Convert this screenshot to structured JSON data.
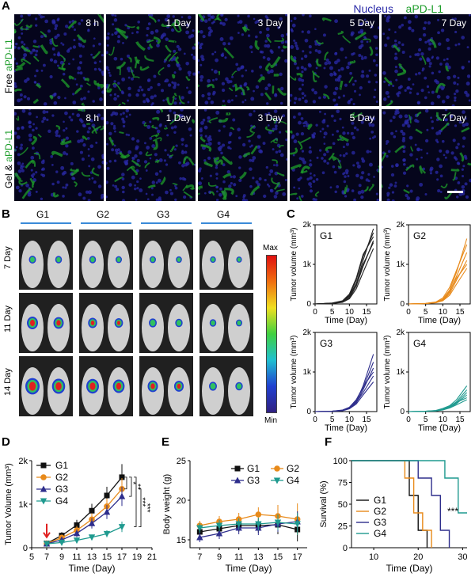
{
  "panelA": {
    "letter": "A",
    "legend_nucleus": "Nucleus",
    "legend_apdl1": "aPD-L1",
    "row1_label_prefix": "Free ",
    "row1_label_colored": "aPD-L1",
    "row2_label_prefix": "Gel & ",
    "row2_label_colored": "aPD-L1",
    "timepoints": [
      "8 h",
      "1 Day",
      "3 Day",
      "5 Day",
      "7 Day"
    ],
    "colors": {
      "nucleus": "#2a2aa8",
      "apdl1": "#1e9d2a"
    }
  },
  "panelB": {
    "letter": "B",
    "groups": [
      "G1",
      "G2",
      "G3",
      "G4"
    ],
    "days": [
      "7 Day",
      "11 Day",
      "14 Day"
    ],
    "colorbar_max": "Max",
    "colorbar_min": "Min"
  },
  "panelC": {
    "letter": "C",
    "ylabel": "Tumor volume (mm³)",
    "xlabel": "Time (Day)",
    "yticks": [
      "0",
      "1k",
      "2k"
    ],
    "xticks": [
      "0",
      "5",
      "10",
      "15"
    ],
    "charts": [
      {
        "group": "G1",
        "color": "#222222"
      },
      {
        "group": "G2",
        "color": "#e88a1a"
      },
      {
        "group": "G3",
        "color": "#2e2e8c"
      },
      {
        "group": "G4",
        "color": "#1f9a8f"
      }
    ]
  },
  "panelD": {
    "letter": "D",
    "sig": [
      "*",
      "**",
      "***",
      "***"
    ]
  },
  "panelE": {
    "letter": "E"
  },
  "panelF": {
    "letter": "F",
    "sig": "***"
  },
  "chart_data": [
    {
      "type": "line",
      "title": "G1",
      "xlabel": "Time (Day)",
      "ylabel": "Tumor volume (mm³)",
      "xlim": [
        0,
        18
      ],
      "ylim": [
        0,
        2000
      ],
      "x": [
        0,
        5,
        8,
        10,
        12,
        14,
        17
      ],
      "series": [
        {
          "values": [
            0,
            20,
            60,
            180,
            500,
            1100,
            1900
          ]
        },
        {
          "values": [
            0,
            20,
            70,
            220,
            600,
            1200,
            1800
          ]
        },
        {
          "values": [
            0,
            15,
            50,
            150,
            450,
            950,
            1600
          ]
        },
        {
          "values": [
            0,
            25,
            80,
            250,
            650,
            1250,
            1700
          ]
        },
        {
          "values": [
            0,
            10,
            40,
            130,
            380,
            800,
            1400
          ]
        },
        {
          "values": [
            0,
            20,
            65,
            200,
            520,
            1000,
            1550
          ]
        }
      ]
    },
    {
      "type": "line",
      "title": "G2",
      "xlabel": "Time (Day)",
      "ylabel": "Tumor volume (mm³)",
      "xlim": [
        0,
        18
      ],
      "ylim": [
        0,
        2000
      ],
      "x": [
        0,
        5,
        8,
        10,
        12,
        14,
        17
      ],
      "series": [
        {
          "values": [
            0,
            10,
            40,
            120,
            350,
            800,
            1650
          ]
        },
        {
          "values": [
            0,
            10,
            35,
            100,
            300,
            700,
            1300
          ]
        },
        {
          "values": [
            0,
            15,
            50,
            150,
            420,
            850,
            1500
          ]
        },
        {
          "values": [
            0,
            10,
            30,
            90,
            260,
            600,
            1100
          ]
        },
        {
          "values": [
            0,
            12,
            45,
            110,
            320,
            650,
            1000
          ]
        },
        {
          "values": [
            0,
            8,
            30,
            80,
            220,
            500,
            900
          ]
        }
      ]
    },
    {
      "type": "line",
      "title": "G3",
      "xlabel": "Time (Day)",
      "ylabel": "Tumor volume (mm³)",
      "xlim": [
        0,
        18
      ],
      "ylim": [
        0,
        2000
      ],
      "x": [
        0,
        5,
        8,
        10,
        12,
        14,
        17
      ],
      "series": [
        {
          "values": [
            0,
            10,
            30,
            90,
            250,
            650,
            1450
          ]
        },
        {
          "values": [
            0,
            10,
            35,
            100,
            280,
            600,
            1250
          ]
        },
        {
          "values": [
            0,
            8,
            25,
            80,
            220,
            550,
            1100
          ]
        },
        {
          "values": [
            0,
            12,
            40,
            110,
            300,
            620,
            1000
          ]
        },
        {
          "values": [
            0,
            10,
            30,
            85,
            230,
            480,
            900
          ]
        },
        {
          "values": [
            0,
            6,
            20,
            70,
            190,
            420,
            750
          ]
        }
      ]
    },
    {
      "type": "line",
      "title": "G4",
      "xlabel": "Time (Day)",
      "ylabel": "Tumor volume (mm³)",
      "xlim": [
        0,
        18
      ],
      "ylim": [
        0,
        2000
      ],
      "x": [
        0,
        5,
        8,
        10,
        12,
        14,
        17
      ],
      "series": [
        {
          "values": [
            0,
            10,
            30,
            80,
            150,
            300,
            650
          ]
        },
        {
          "values": [
            0,
            8,
            25,
            60,
            130,
            250,
            550
          ]
        },
        {
          "values": [
            0,
            10,
            20,
            55,
            110,
            220,
            480
          ]
        },
        {
          "values": [
            0,
            6,
            18,
            45,
            100,
            200,
            420
          ]
        },
        {
          "values": [
            0,
            8,
            22,
            50,
            120,
            230,
            350
          ]
        },
        {
          "values": [
            0,
            5,
            15,
            40,
            90,
            170,
            300
          ]
        }
      ]
    },
    {
      "type": "line",
      "xlabel": "Time (Day)",
      "ylabel": "Tumor Volume (mm³)",
      "xlim": [
        5,
        21
      ],
      "ylim": [
        0,
        2000
      ],
      "xticks": [
        5,
        7,
        9,
        11,
        13,
        15,
        17,
        19,
        21
      ],
      "yticks": [
        "0",
        "1k",
        "2k"
      ],
      "legend": "top-left",
      "series": [
        {
          "name": "G1",
          "color": "#111111",
          "marker": "square",
          "x": [
            7,
            9,
            11,
            13,
            15,
            17
          ],
          "values": [
            100,
            280,
            520,
            850,
            1200,
            1620
          ],
          "err": [
            40,
            80,
            120,
            160,
            200,
            300
          ]
        },
        {
          "name": "G2",
          "color": "#e88a1a",
          "marker": "circle",
          "x": [
            7,
            9,
            11,
            13,
            15,
            17
          ],
          "values": [
            100,
            230,
            400,
            650,
            950,
            1350
          ],
          "err": [
            40,
            70,
            100,
            140,
            180,
            250
          ]
        },
        {
          "name": "G3",
          "color": "#2e2e8c",
          "marker": "triangle",
          "x": [
            7,
            9,
            11,
            13,
            15,
            17
          ],
          "values": [
            90,
            180,
            330,
            560,
            820,
            1180
          ],
          "err": [
            30,
            60,
            90,
            120,
            160,
            220
          ]
        },
        {
          "name": "G4",
          "color": "#1f9a8f",
          "marker": "triangle-down",
          "x": [
            7,
            9,
            11,
            13,
            15,
            17
          ],
          "values": [
            90,
            120,
            170,
            240,
            320,
            480
          ],
          "err": [
            30,
            40,
            50,
            60,
            80,
            120
          ]
        }
      ]
    },
    {
      "type": "line",
      "xlabel": "Time (Day)",
      "ylabel": "Body weight (g)",
      "xlim": [
        6,
        18
      ],
      "ylim": [
        14,
        25
      ],
      "xticks": [
        7,
        9,
        11,
        13,
        15,
        17
      ],
      "yticks": [
        15,
        20,
        25
      ],
      "legend": "top",
      "series": [
        {
          "name": "G1",
          "color": "#111111",
          "marker": "square",
          "x": [
            7,
            9,
            11,
            13,
            15,
            17
          ],
          "values": [
            16.0,
            16.4,
            16.8,
            16.8,
            16.9,
            16.3
          ],
          "err": [
            0.6,
            0.7,
            0.8,
            0.9,
            1.2,
            1.5
          ]
        },
        {
          "name": "G2",
          "color": "#e88a1a",
          "marker": "circle",
          "x": [
            7,
            9,
            11,
            13,
            15,
            17
          ],
          "values": [
            16.8,
            17.3,
            17.6,
            18.2,
            18.0,
            17.6
          ],
          "err": [
            0.6,
            0.7,
            0.8,
            0.9,
            1.4,
            2.0
          ]
        },
        {
          "name": "G3",
          "color": "#2e2e8c",
          "marker": "triangle",
          "x": [
            7,
            9,
            11,
            13,
            15,
            17
          ],
          "values": [
            15.3,
            15.8,
            16.5,
            16.5,
            17.0,
            17.3
          ],
          "err": [
            0.6,
            0.7,
            0.8,
            0.9,
            1.0,
            1.3
          ]
        },
        {
          "name": "G4",
          "color": "#1f9a8f",
          "marker": "triangle-down",
          "x": [
            7,
            9,
            11,
            13,
            15,
            17
          ],
          "values": [
            16.5,
            16.8,
            17.0,
            17.0,
            17.2,
            17.0
          ],
          "err": [
            0.6,
            0.7,
            0.7,
            0.8,
            1.0,
            1.4
          ]
        }
      ]
    },
    {
      "type": "line",
      "xlabel": "Time (Day)",
      "ylabel": "Survival (%)",
      "xlim": [
        5,
        31
      ],
      "ylim": [
        0,
        100
      ],
      "xticks": [
        10,
        20,
        30
      ],
      "yticks": [
        0,
        25,
        50,
        75,
        100
      ],
      "legend": "center-left",
      "series": [
        {
          "name": "G1",
          "color": "#111111",
          "x": [
            5,
            18,
            18,
            20,
            20,
            22,
            22
          ],
          "values": [
            100,
            100,
            60,
            60,
            20,
            20,
            0
          ]
        },
        {
          "name": "G2",
          "color": "#e88a1a",
          "x": [
            5,
            17,
            17,
            19,
            19,
            21,
            21,
            23,
            23
          ],
          "values": [
            100,
            100,
            80,
            80,
            40,
            40,
            20,
            20,
            0
          ]
        },
        {
          "name": "G3",
          "color": "#2e2e8c",
          "x": [
            5,
            20,
            20,
            23,
            23,
            25,
            25,
            27,
            27
          ],
          "values": [
            100,
            100,
            80,
            80,
            60,
            60,
            20,
            20,
            0
          ]
        },
        {
          "name": "G4",
          "color": "#1f9a8f",
          "x": [
            5,
            26,
            26,
            29,
            29,
            31
          ],
          "values": [
            100,
            100,
            80,
            80,
            40,
            40
          ]
        }
      ]
    }
  ]
}
